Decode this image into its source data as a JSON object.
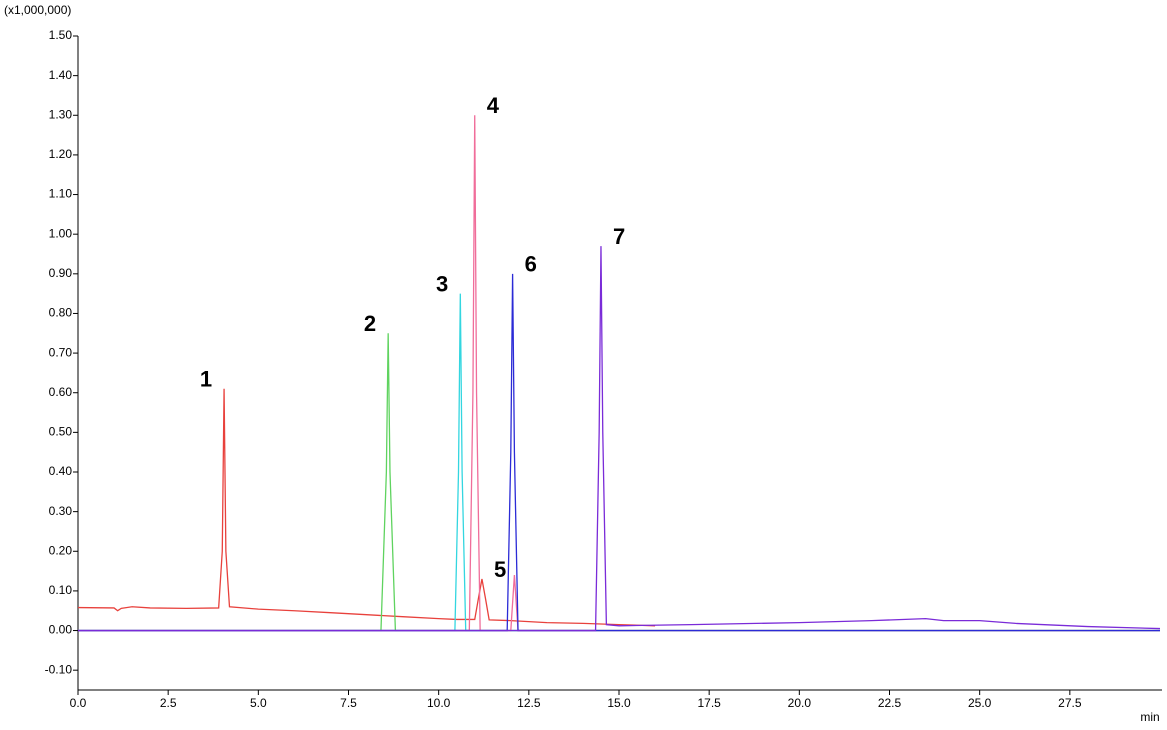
{
  "chart_data": {
    "type": "line",
    "y_unit_label": "(x1,000,000)",
    "x_label": "min",
    "xlim": [
      0,
      30
    ],
    "ylim": [
      -0.15,
      1.5
    ],
    "xticks": [
      {
        "value": 0,
        "label": "0.0"
      },
      2.5,
      {
        "value": 5,
        "label": "5.0"
      },
      7.5,
      {
        "value": 10,
        "label": "10.0"
      },
      12.5,
      {
        "value": 15,
        "label": "15.0"
      },
      17.5,
      {
        "value": 20,
        "label": "20.0"
      },
      22.5,
      {
        "value": 25,
        "label": "25.0"
      },
      27.5
    ],
    "yticks": [
      {
        "value": -0.1,
        "label": "-0.10"
      },
      {
        "value": 0,
        "label": "0.00"
      },
      {
        "value": 0.1,
        "label": "0.10"
      },
      {
        "value": 0.2,
        "label": "0.20"
      },
      {
        "value": 0.3,
        "label": "0.30"
      },
      {
        "value": 0.4,
        "label": "0.40"
      },
      {
        "value": 0.5,
        "label": "0.50"
      },
      {
        "value": 0.6,
        "label": "0.60"
      },
      {
        "value": 0.7,
        "label": "0.70"
      },
      {
        "value": 0.8,
        "label": "0.80"
      },
      {
        "value": 0.9,
        "label": "0.90"
      },
      {
        "value": 1.0,
        "label": "1.00"
      },
      {
        "value": 1.1,
        "label": "1.10"
      },
      {
        "value": 1.2,
        "label": "1.20"
      },
      {
        "value": 1.3,
        "label": "1.30"
      },
      {
        "value": 1.4,
        "label": "1.40"
      },
      {
        "value": 1.5,
        "label": "1.50"
      }
    ],
    "grid": false,
    "series": [
      {
        "color": "#e8413c",
        "x": [
          0,
          1,
          1.1,
          1.2,
          1.5,
          2,
          3,
          3.9,
          4.0,
          4.05,
          4.1,
          4.2,
          5,
          6,
          7,
          8,
          9,
          10,
          10.5,
          11,
          11.1,
          11.2,
          11.3,
          11.4,
          12,
          13,
          14,
          15,
          16
        ],
        "values": [
          0.058,
          0.057,
          0.05,
          0.056,
          0.06,
          0.057,
          0.056,
          0.057,
          0.2,
          0.61,
          0.2,
          0.06,
          0.054,
          0.05,
          0.045,
          0.04,
          0.035,
          0.03,
          0.028,
          0.028,
          0.08,
          0.13,
          0.08,
          0.027,
          0.025,
          0.02,
          0.018,
          0.015,
          0.012
        ]
      },
      {
        "color": "#5fd35f",
        "x": [
          0,
          8.4,
          8.55,
          8.6,
          8.65,
          8.8,
          30
        ],
        "values": [
          0,
          0,
          0.4,
          0.75,
          0.4,
          0,
          0
        ]
      },
      {
        "color": "#33d6e0",
        "x": [
          0,
          10.45,
          10.55,
          10.6,
          10.65,
          10.75,
          30
        ],
        "values": [
          0,
          0,
          0.4,
          0.85,
          0.4,
          0,
          0
        ]
      },
      {
        "color": "#f06d9a",
        "x": [
          0,
          10.85,
          10.95,
          11.0,
          11.05,
          11.15,
          12.0,
          12.1,
          12.2,
          30
        ],
        "values": [
          0,
          0,
          0.6,
          1.3,
          0.6,
          0,
          0,
          0.14,
          0,
          0
        ]
      },
      {
        "color": "#2b2bd6",
        "x": [
          0,
          11.9,
          12.0,
          12.05,
          12.1,
          12.2,
          30
        ],
        "values": [
          0,
          0,
          0.45,
          0.9,
          0.45,
          0,
          0
        ]
      },
      {
        "color": "#7a2bd8",
        "x": [
          0,
          14.35,
          14.45,
          14.5,
          14.55,
          14.65,
          15,
          17,
          20,
          22,
          23.5,
          24,
          25,
          26,
          28,
          30
        ],
        "values": [
          0,
          0,
          0.5,
          0.97,
          0.5,
          0.015,
          0.012,
          0.015,
          0.02,
          0.025,
          0.03,
          0.025,
          0.025,
          0.018,
          0.01,
          0.005
        ]
      }
    ],
    "annotations": [
      {
        "text": "1",
        "x": 4.05,
        "y": 0.61,
        "side": "left"
      },
      {
        "text": "2",
        "x": 8.6,
        "y": 0.75,
        "side": "left"
      },
      {
        "text": "3",
        "x": 10.6,
        "y": 0.85,
        "side": "left"
      },
      {
        "text": "4",
        "x": 11.0,
        "y": 1.3,
        "side": "right"
      },
      {
        "text": "5",
        "x": 11.2,
        "y": 0.13,
        "side": "right"
      },
      {
        "text": "6",
        "x": 12.05,
        "y": 0.9,
        "side": "right"
      },
      {
        "text": "7",
        "x": 14.5,
        "y": 0.97,
        "side": "right"
      }
    ]
  }
}
